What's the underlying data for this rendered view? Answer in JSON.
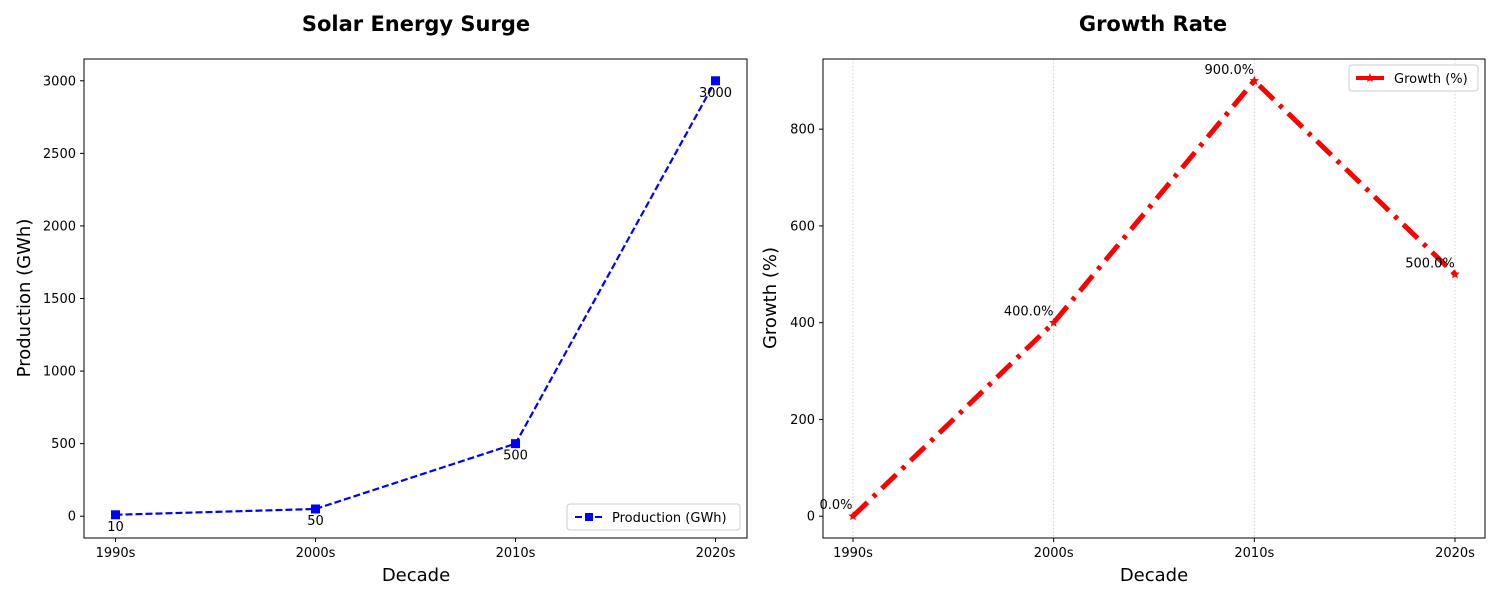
{
  "chart_data": [
    {
      "type": "line",
      "title": "Solar Energy Surge",
      "xlabel": "Decade",
      "ylabel": "Production (GWh)",
      "categories": [
        "1990s",
        "2000s",
        "2010s",
        "2020s"
      ],
      "series": [
        {
          "name": "Production (GWh)",
          "values": [
            10,
            50,
            500,
            3000
          ],
          "color": "#0000ff",
          "marker": "square",
          "line_style": "dashed"
        }
      ],
      "data_labels": [
        "10",
        "50",
        "500",
        "3000"
      ],
      "ylim": [
        -150,
        3150
      ],
      "yticks": [
        0,
        500,
        1000,
        1500,
        2000,
        2500,
        3000
      ],
      "ytick_labels": [
        "0",
        "500",
        "1000",
        "1500",
        "2000",
        "2500",
        "3000"
      ],
      "grid": false,
      "legend_position": "lower-right"
    },
    {
      "type": "line",
      "title": "Growth Rate",
      "xlabel": "Decade",
      "ylabel": "Growth (%)",
      "categories": [
        "1990s",
        "2000s",
        "2010s",
        "2020s"
      ],
      "series": [
        {
          "name": "Growth (%)",
          "values": [
            0,
            400,
            900,
            500
          ],
          "color": "#ff0000",
          "marker": "star",
          "line_style": "dash-dot"
        }
      ],
      "data_labels": [
        "0.0%",
        "400.0%",
        "900.0%",
        "500.0%"
      ],
      "ylim": [
        -45,
        945
      ],
      "yticks": [
        0,
        200,
        400,
        600,
        800
      ],
      "ytick_labels": [
        "0",
        "200",
        "400",
        "600",
        "800"
      ],
      "grid": "x-dotted",
      "legend_position": "upper-right"
    }
  ]
}
